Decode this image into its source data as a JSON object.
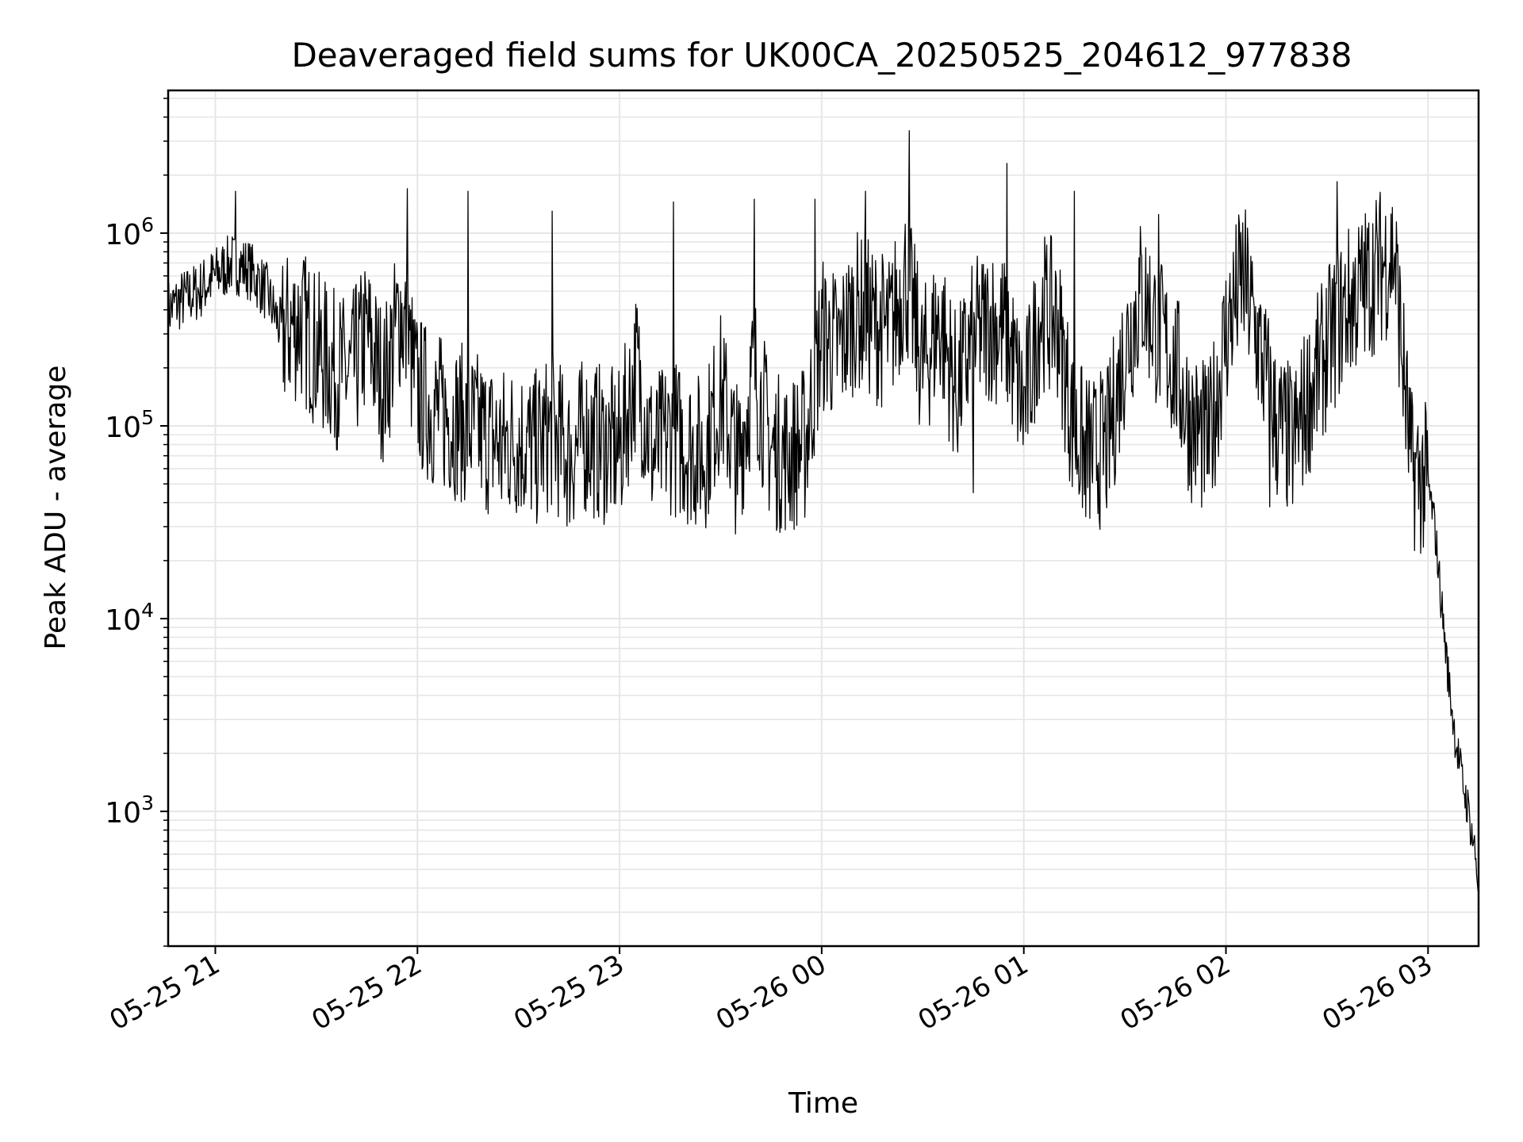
{
  "chart_data": {
    "type": "line",
    "title": "Deaveraged field sums for UK00CA_20250525_204612_977838",
    "xlabel": "Time",
    "ylabel": "Peak ADU - average",
    "y_scale": "log",
    "ylim": [
      200,
      5500000
    ],
    "xlim": [
      "2025-05-25 20:46",
      "2025-05-26 03:15"
    ],
    "grid": true,
    "line_color": "#000000",
    "grid_color": "#e6e6e6",
    "x_ticks": [
      {
        "label": "05-25 21",
        "value": "2025-05-25 21:00"
      },
      {
        "label": "05-25 22",
        "value": "2025-05-25 22:00"
      },
      {
        "label": "05-25 23",
        "value": "2025-05-25 23:00"
      },
      {
        "label": "05-26 00",
        "value": "2025-05-26 00:00"
      },
      {
        "label": "05-26 01",
        "value": "2025-05-26 01:00"
      },
      {
        "label": "05-26 02",
        "value": "2025-05-26 02:00"
      },
      {
        "label": "05-26 03",
        "value": "2025-05-26 03:00"
      }
    ],
    "y_ticks": [
      {
        "base": "10",
        "exp": "3",
        "value": 1000
      },
      {
        "base": "10",
        "exp": "4",
        "value": 10000
      },
      {
        "base": "10",
        "exp": "5",
        "value": 100000
      },
      {
        "base": "10",
        "exp": "6",
        "value": 1000000
      }
    ],
    "series": [
      {
        "x": [
          "2025-05-25 20:46",
          "2025-05-25 20:50",
          "2025-05-25 20:55",
          "2025-05-25 21:00",
          "2025-05-25 21:05",
          "2025-05-25 21:10",
          "2025-05-25 21:15",
          "2025-05-25 21:20",
          "2025-05-25 21:25",
          "2025-05-25 21:30",
          "2025-05-25 21:35",
          "2025-05-25 21:40",
          "2025-05-25 21:45",
          "2025-05-25 21:50",
          "2025-05-25 21:55",
          "2025-05-25 22:00",
          "2025-05-25 22:05",
          "2025-05-25 22:10",
          "2025-05-25 22:15",
          "2025-05-25 22:20",
          "2025-05-25 22:25",
          "2025-05-25 22:30",
          "2025-05-25 22:35",
          "2025-05-25 22:40",
          "2025-05-25 22:45",
          "2025-05-25 22:50",
          "2025-05-25 22:55",
          "2025-05-25 23:00",
          "2025-05-25 23:05",
          "2025-05-25 23:10",
          "2025-05-25 23:15",
          "2025-05-25 23:20",
          "2025-05-25 23:25",
          "2025-05-25 23:30",
          "2025-05-25 23:35",
          "2025-05-25 23:40",
          "2025-05-25 23:45",
          "2025-05-25 23:50",
          "2025-05-25 23:55",
          "2025-05-26 00:00",
          "2025-05-26 00:05",
          "2025-05-26 00:10",
          "2025-05-26 00:15",
          "2025-05-26 00:20",
          "2025-05-26 00:25",
          "2025-05-26 00:30",
          "2025-05-26 00:35",
          "2025-05-26 00:40",
          "2025-05-26 00:45",
          "2025-05-26 00:50",
          "2025-05-26 00:55",
          "2025-05-26 01:00",
          "2025-05-26 01:05",
          "2025-05-26 01:10",
          "2025-05-26 01:15",
          "2025-05-26 01:20",
          "2025-05-26 01:25",
          "2025-05-26 01:30",
          "2025-05-26 01:35",
          "2025-05-26 01:40",
          "2025-05-26 01:45",
          "2025-05-26 01:50",
          "2025-05-26 01:55",
          "2025-05-26 02:00",
          "2025-05-26 02:05",
          "2025-05-26 02:10",
          "2025-05-26 02:15",
          "2025-05-26 02:20",
          "2025-05-26 02:25",
          "2025-05-26 02:30",
          "2025-05-26 02:35",
          "2025-05-26 02:40",
          "2025-05-26 02:45",
          "2025-05-26 02:50",
          "2025-05-26 02:55",
          "2025-05-26 03:00",
          "2025-05-26 03:02",
          "2025-05-26 03:04",
          "2025-05-26 03:06",
          "2025-05-26 03:08",
          "2025-05-26 03:10",
          "2025-05-26 03:12",
          "2025-05-26 03:14",
          "2025-05-26 03:15"
        ],
        "y": [
          400000,
          450000,
          500000,
          600000,
          700000,
          650000,
          500000,
          300000,
          350000,
          250000,
          200000,
          180000,
          300000,
          160000,
          400000,
          150000,
          120000,
          110000,
          100000,
          90000,
          80000,
          85000,
          75000,
          95000,
          70000,
          90000,
          80000,
          75000,
          200000,
          70000,
          90000,
          80000,
          70000,
          150000,
          65000,
          200000,
          75000,
          70000,
          80000,
          300000,
          250000,
          400000,
          350000,
          300000,
          600000,
          200000,
          350000,
          150000,
          280000,
          350000,
          300000,
          120000,
          400000,
          350000,
          90000,
          70000,
          80000,
          250000,
          500000,
          300000,
          200000,
          100000,
          80000,
          300000,
          600000,
          250000,
          100000,
          80000,
          150000,
          250000,
          400000,
          500000,
          650000,
          800000,
          60000,
          50000,
          30000,
          12000,
          5000,
          2500,
          1500,
          1000,
          600,
          400
        ],
        "peaks": [
          {
            "x": "2025-05-25 21:06",
            "y": 1650000
          },
          {
            "x": "2025-05-25 21:57",
            "y": 1700000
          },
          {
            "x": "2025-05-25 22:15",
            "y": 1650000
          },
          {
            "x": "2025-05-25 22:40",
            "y": 1300000
          },
          {
            "x": "2025-05-25 23:16",
            "y": 1450000
          },
          {
            "x": "2025-05-25 23:40",
            "y": 1500000
          },
          {
            "x": "2025-05-25 23:58",
            "y": 1500000
          },
          {
            "x": "2025-05-26 00:13",
            "y": 1650000
          },
          {
            "x": "2025-05-26 00:26",
            "y": 3400000
          },
          {
            "x": "2025-05-26 00:55",
            "y": 2300000
          },
          {
            "x": "2025-05-26 01:15",
            "y": 1650000
          },
          {
            "x": "2025-05-26 01:40",
            "y": 1250000
          },
          {
            "x": "2025-05-26 02:33",
            "y": 1850000
          }
        ],
        "troughs": [
          {
            "x": "2025-05-25 22:25",
            "y": 42000
          },
          {
            "x": "2025-05-25 23:35",
            "y": 44000
          },
          {
            "x": "2025-05-26 00:45",
            "y": 45000
          },
          {
            "x": "2025-05-26 01:18",
            "y": 44000
          },
          {
            "x": "2025-05-26 02:13",
            "y": 38000
          }
        ]
      }
    ]
  }
}
